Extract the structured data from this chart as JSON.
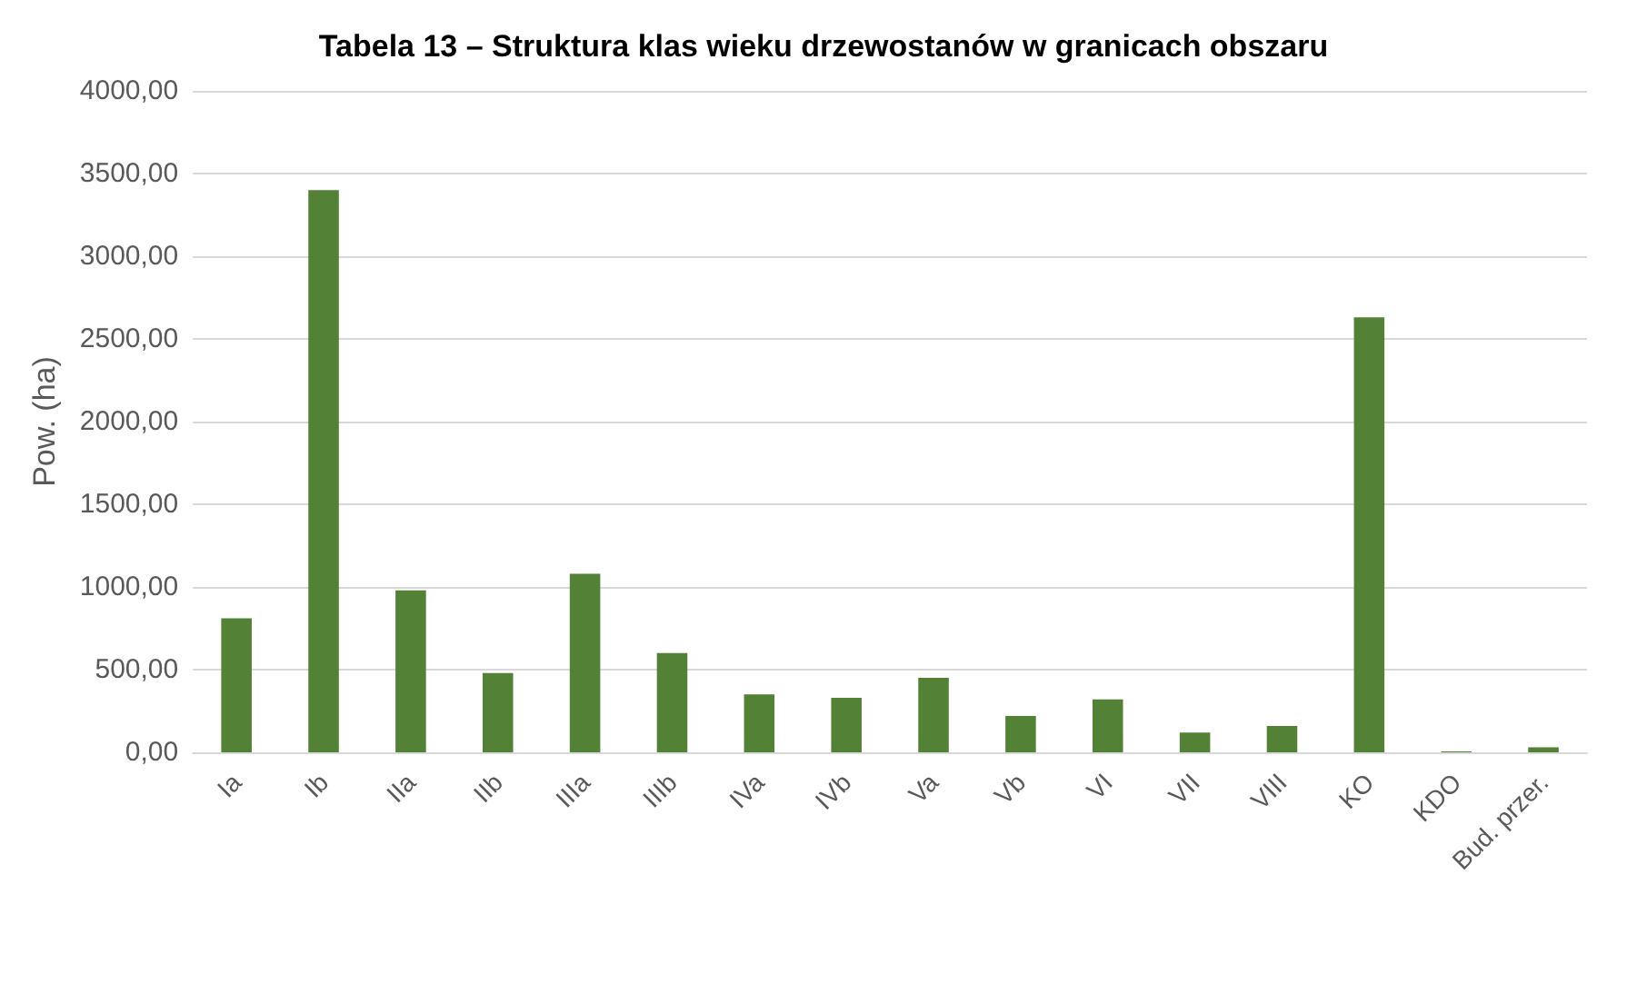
{
  "chart_data": {
    "type": "bar",
    "title": "Tabela 13 – Struktura klas wieku drzewostanów w granicach obszaru",
    "ylabel": "Pow. (ha)",
    "categories": [
      "Ia",
      "Ib",
      "IIa",
      "IIb",
      "IIIa",
      "IIIb",
      "IVa",
      "IVb",
      "Va",
      "Vb",
      "VI",
      "VII",
      "VIII",
      "KO",
      "KDO",
      "Bud. przer."
    ],
    "values": [
      810,
      3400,
      980,
      480,
      1080,
      600,
      350,
      330,
      450,
      220,
      320,
      120,
      160,
      2630,
      5,
      30
    ],
    "color": "#538135",
    "ylim": [
      0,
      4000
    ],
    "yticks": [
      {
        "value": 0,
        "label": "0,00"
      },
      {
        "value": 500,
        "label": "500,00"
      },
      {
        "value": 1000,
        "label": "1000,00"
      },
      {
        "value": 1500,
        "label": "1500,00"
      },
      {
        "value": 2000,
        "label": "2000,00"
      },
      {
        "value": 2500,
        "label": "2500,00"
      },
      {
        "value": 3000,
        "label": "3000,00"
      },
      {
        "value": 3500,
        "label": "3500,00"
      },
      {
        "value": 4000,
        "label": "4000,00"
      }
    ],
    "grid": "y"
  }
}
